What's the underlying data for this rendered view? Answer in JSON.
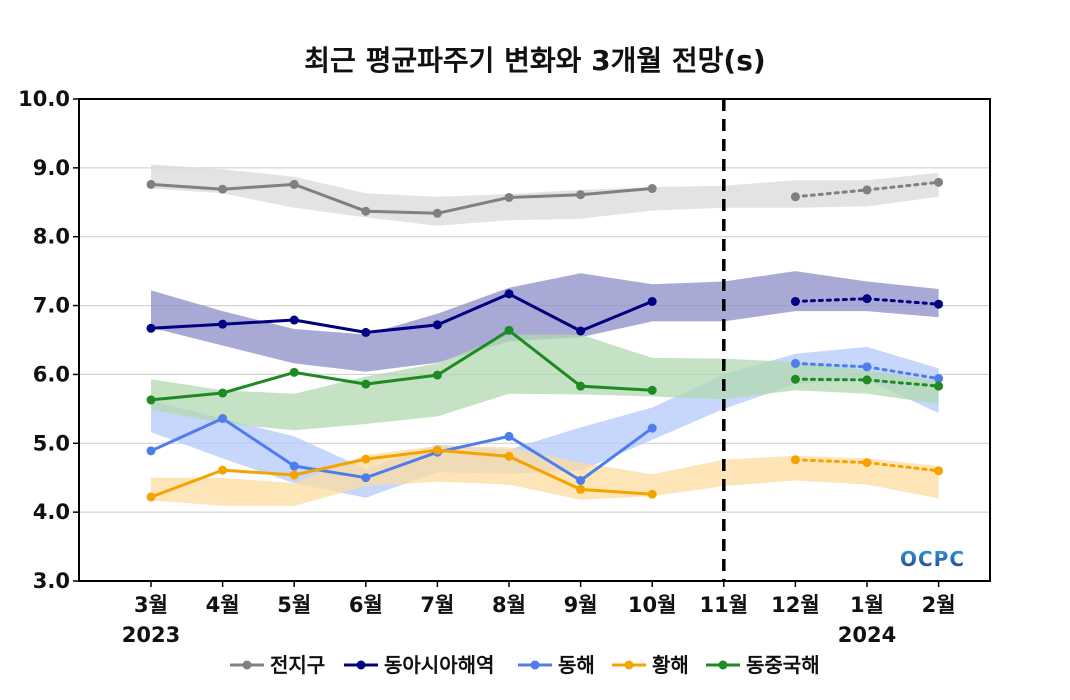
{
  "chart_data": {
    "type": "line",
    "title": "최근 평균파주기 변화와 3개월 전망(s)",
    "xlabel": "",
    "ylabel": "",
    "categories": [
      "3월",
      "4월",
      "5월",
      "6월",
      "7월",
      "8월",
      "9월",
      "10월",
      "11월",
      "12월",
      "1월",
      "2월"
    ],
    "year_labels": [
      {
        "category_index": 0,
        "text": "2023"
      },
      {
        "category_index": 10,
        "text": "2024"
      }
    ],
    "ylim": [
      3.0,
      10.0
    ],
    "yticks": [
      "3.0",
      "4.0",
      "5.0",
      "6.0",
      "7.0",
      "8.0",
      "9.0",
      "10.0"
    ],
    "grid": true,
    "forecast_divider_index": 8,
    "legend_position": "bottom",
    "series": [
      {
        "name": "전지구",
        "color": "#808080",
        "band_color": "#d9d9d9",
        "observed": [
          8.76,
          8.69,
          8.76,
          8.37,
          8.34,
          8.57,
          8.61,
          8.7,
          null,
          null,
          null,
          null
        ],
        "forecast": [
          null,
          null,
          null,
          null,
          null,
          null,
          null,
          null,
          null,
          8.58,
          8.68,
          8.79
        ],
        "band_upper": [
          9.05,
          8.98,
          8.87,
          8.63,
          8.58,
          8.62,
          8.68,
          8.72,
          8.74,
          8.82,
          8.82,
          8.93
        ],
        "band_lower": [
          8.7,
          8.63,
          8.42,
          8.28,
          8.16,
          8.24,
          8.26,
          8.38,
          8.42,
          8.42,
          8.44,
          8.58
        ]
      },
      {
        "name": "동아시아해역",
        "color": "#000080",
        "band_color": "#8c8cc8",
        "observed": [
          6.67,
          6.73,
          6.79,
          6.61,
          6.72,
          7.17,
          6.63,
          7.06,
          null,
          null,
          null,
          null
        ],
        "forecast": [
          null,
          null,
          null,
          null,
          null,
          null,
          null,
          null,
          null,
          7.06,
          7.1,
          7.02
        ],
        "band_upper": [
          7.22,
          6.92,
          6.66,
          6.58,
          6.88,
          7.26,
          7.47,
          7.31,
          7.35,
          7.5,
          7.35,
          7.24
        ],
        "band_lower": [
          6.68,
          6.42,
          6.16,
          6.04,
          6.17,
          6.48,
          6.54,
          6.77,
          6.77,
          6.92,
          6.92,
          6.83
        ]
      },
      {
        "name": "동해",
        "color": "#4f7ded",
        "band_color": "#b4c8fa",
        "observed": [
          4.89,
          5.36,
          4.67,
          4.5,
          4.87,
          5.1,
          4.46,
          5.22,
          null,
          null,
          null,
          null
        ],
        "forecast": [
          null,
          null,
          null,
          null,
          null,
          null,
          null,
          null,
          null,
          6.16,
          6.11,
          5.94
        ],
        "band_upper": [
          5.62,
          5.36,
          5.1,
          4.63,
          4.98,
          4.91,
          5.23,
          5.52,
          6.0,
          6.3,
          6.4,
          6.09
        ],
        "band_lower": [
          5.16,
          4.78,
          4.42,
          4.21,
          4.58,
          4.56,
          4.6,
          5.05,
          5.5,
          5.86,
          5.92,
          5.44
        ]
      },
      {
        "name": "황해",
        "color": "#f5a300",
        "band_color": "#fcdca0",
        "observed": [
          4.22,
          4.61,
          4.54,
          4.77,
          4.9,
          4.81,
          4.33,
          4.26,
          null,
          null,
          null,
          null
        ],
        "forecast": [
          null,
          null,
          null,
          null,
          null,
          null,
          null,
          null,
          null,
          4.76,
          4.72,
          4.6
        ],
        "band_upper": [
          4.5,
          4.5,
          4.42,
          4.83,
          4.96,
          4.94,
          4.72,
          4.55,
          4.76,
          4.82,
          4.78,
          4.67
        ],
        "band_lower": [
          4.17,
          4.09,
          4.09,
          4.38,
          4.44,
          4.4,
          4.18,
          4.23,
          4.38,
          4.46,
          4.4,
          4.2
        ]
      },
      {
        "name": "동중국해",
        "color": "#1f8a24",
        "band_color": "#b2d9b0",
        "observed": [
          5.63,
          5.73,
          6.03,
          5.86,
          5.99,
          6.64,
          5.83,
          5.77,
          null,
          null,
          null,
          null
        ],
        "forecast": [
          null,
          null,
          null,
          null,
          null,
          null,
          null,
          null,
          null,
          5.93,
          5.92,
          5.83
        ],
        "band_upper": [
          5.93,
          5.77,
          5.72,
          5.97,
          6.16,
          6.58,
          6.58,
          6.24,
          6.23,
          6.18,
          6.06,
          5.91
        ],
        "band_lower": [
          5.49,
          5.29,
          5.19,
          5.28,
          5.39,
          5.72,
          5.71,
          5.68,
          5.64,
          5.77,
          5.72,
          5.57
        ]
      }
    ]
  },
  "logo": {
    "text": "OCPC",
    "color_top": "#3aa0e0",
    "color_bottom": "#1a3f8a"
  }
}
